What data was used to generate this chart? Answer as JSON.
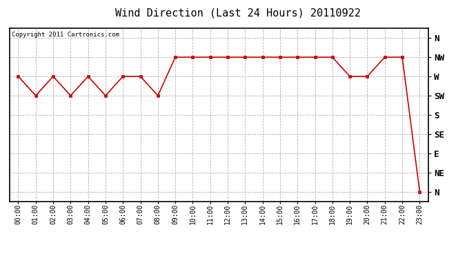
{
  "title": "Wind Direction (Last 24 Hours) 20110922",
  "copyright_text": "Copyright 2011 Cartronics.com",
  "x_labels": [
    "00:00",
    "01:00",
    "02:00",
    "03:00",
    "04:00",
    "05:00",
    "06:00",
    "07:00",
    "08:00",
    "09:00",
    "10:00",
    "11:00",
    "12:00",
    "13:00",
    "14:00",
    "15:00",
    "16:00",
    "17:00",
    "18:00",
    "19:00",
    "20:00",
    "21:00",
    "22:00",
    "23:00"
  ],
  "y_labels": [
    "N",
    "NW",
    "W",
    "SW",
    "S",
    "SE",
    "E",
    "NE",
    "N"
  ],
  "y_ticks": [
    8,
    7,
    6,
    5,
    4,
    3,
    2,
    1,
    0
  ],
  "data_y": [
    6,
    5,
    6,
    5,
    6,
    5,
    6,
    6,
    5,
    7,
    7,
    7,
    7,
    7,
    7,
    7,
    7,
    7,
    7,
    6,
    6,
    7,
    7,
    0
  ],
  "line_color": "#cc0000",
  "marker": "s",
  "marker_size": 3,
  "bg_color": "#ffffff",
  "grid_color": "#b0b0b0",
  "title_fontsize": 11,
  "copyright_fontsize": 6.5,
  "tick_fontsize": 7,
  "ylabel_fontsize": 9,
  "ylim": [
    -0.5,
    8.5
  ],
  "xlim": [
    -0.5,
    23.5
  ]
}
